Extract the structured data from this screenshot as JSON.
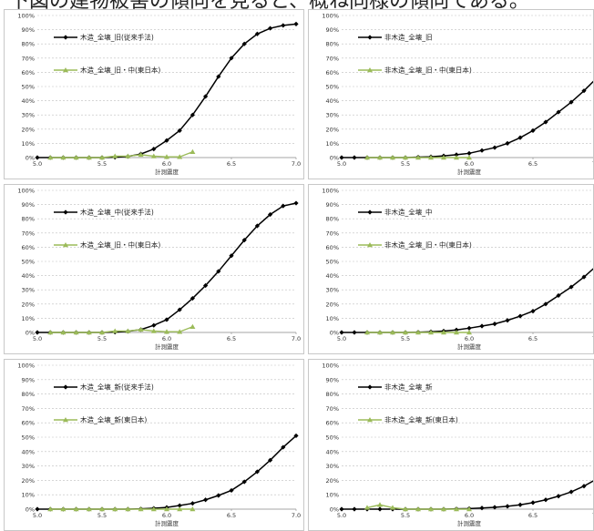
{
  "header_text": "下図の建物被害の傾向を見ると、概ね同様の傾向である。",
  "chart_data": [
    {
      "type": "line",
      "x": [
        5.0,
        5.1,
        5.2,
        5.3,
        5.4,
        5.5,
        5.6,
        5.7,
        5.8,
        5.9,
        6.0,
        6.1,
        6.2,
        6.3,
        6.4,
        6.5,
        6.6,
        6.7,
        6.8,
        6.9,
        7.0
      ],
      "xlim": [
        5.0,
        7.0
      ],
      "ylim": [
        0,
        100
      ],
      "xticks": [
        "5.0",
        "5.5",
        "6.0",
        "6.5",
        "7.0"
      ],
      "yticks": [
        "0%",
        "10%",
        "20%",
        "30%",
        "40%",
        "50%",
        "60%",
        "70%",
        "80%",
        "90%",
        "100%"
      ],
      "xlabel": "計測震度",
      "ylabel": "",
      "grid": "horizontal-dashed",
      "legend": "top-left",
      "series": [
        {
          "name": "木造_全壊_旧(従来手法)",
          "color": "#000000",
          "marker": "diamond",
          "x": [
            5.0,
            5.1,
            5.2,
            5.3,
            5.4,
            5.5,
            5.6,
            5.7,
            5.8,
            5.9,
            6.0,
            6.1,
            6.2,
            6.3,
            6.4,
            6.5,
            6.6,
            6.7,
            6.8,
            6.9,
            7.0
          ],
          "values": [
            0,
            0,
            0,
            0,
            0,
            0,
            0.2,
            0.8,
            2.5,
            6,
            12,
            19,
            30,
            43,
            57,
            70,
            80,
            87,
            91,
            93,
            94
          ]
        },
        {
          "name": "木造_全壊_旧・中(東日本)",
          "color": "#9bbb59",
          "marker": "triangle",
          "x": [
            5.1,
            5.2,
            5.3,
            5.4,
            5.5,
            5.6,
            5.7,
            5.8,
            5.9,
            6.0,
            6.1,
            6.2
          ],
          "values": [
            0,
            0,
            0,
            0,
            0,
            1,
            1,
            2,
            1,
            0.5,
            0.5,
            4
          ]
        }
      ]
    },
    {
      "type": "line",
      "x": [
        5.0,
        5.1,
        5.2,
        5.3,
        5.4,
        5.5,
        5.6,
        5.7,
        5.8,
        5.9,
        6.0,
        6.1,
        6.2,
        6.3,
        6.4,
        6.5,
        6.6,
        6.7,
        6.8,
        6.9,
        7.0
      ],
      "xlim": [
        5.0,
        7.0
      ],
      "ylim": [
        0,
        100
      ],
      "xticks": [
        "5.0",
        "5.5",
        "6.0",
        "6.5",
        "7.0"
      ],
      "yticks": [
        "0%",
        "10%",
        "20%",
        "30%",
        "40%",
        "50%",
        "60%",
        "70%",
        "80%",
        "90%",
        "100%"
      ],
      "xlabel": "計測震度",
      "ylabel": "",
      "grid": "horizontal-dashed",
      "legend": "top-left",
      "series": [
        {
          "name": "非木造_全壊_旧",
          "color": "#000000",
          "marker": "diamond",
          "x": [
            5.0,
            5.1,
            5.2,
            5.3,
            5.4,
            5.5,
            5.6,
            5.7,
            5.8,
            5.9,
            6.0,
            6.1,
            6.2,
            6.3,
            6.4,
            6.5,
            6.6,
            6.7,
            6.8,
            6.9,
            7.0
          ],
          "values": [
            0,
            0,
            0,
            0,
            0,
            0,
            0.3,
            0.6,
            1.2,
            2,
            3,
            5,
            7,
            10,
            14,
            19,
            25,
            32,
            39,
            47,
            56
          ]
        },
        {
          "name": "非木造_全壊_旧・中(東日本)",
          "color": "#9bbb59",
          "marker": "triangle",
          "x": [
            5.2,
            5.3,
            5.4,
            5.5,
            5.6,
            5.7,
            5.8,
            5.9,
            6.0
          ],
          "values": [
            0,
            0,
            0,
            0,
            0,
            0,
            0,
            0,
            0
          ]
        }
      ]
    },
    {
      "type": "line",
      "x": [
        5.0,
        5.1,
        5.2,
        5.3,
        5.4,
        5.5,
        5.6,
        5.7,
        5.8,
        5.9,
        6.0,
        6.1,
        6.2,
        6.3,
        6.4,
        6.5,
        6.6,
        6.7,
        6.8,
        6.9,
        7.0
      ],
      "xlim": [
        5.0,
        7.0
      ],
      "ylim": [
        0,
        100
      ],
      "xticks": [
        "5.0",
        "5.5",
        "6.0",
        "6.5",
        "7.0"
      ],
      "yticks": [
        "0%",
        "10%",
        "20%",
        "30%",
        "40%",
        "50%",
        "60%",
        "70%",
        "80%",
        "90%",
        "100%"
      ],
      "xlabel": "計測震度",
      "ylabel": "",
      "grid": "horizontal-dashed",
      "legend": "top-left",
      "series": [
        {
          "name": "木造_全壊_中(従来手法)",
          "color": "#000000",
          "marker": "diamond",
          "x": [
            5.0,
            5.1,
            5.2,
            5.3,
            5.4,
            5.5,
            5.6,
            5.7,
            5.8,
            5.9,
            6.0,
            6.1,
            6.2,
            6.3,
            6.4,
            6.5,
            6.6,
            6.7,
            6.8,
            6.9,
            7.0
          ],
          "values": [
            0,
            0,
            0,
            0,
            0,
            0,
            0.2,
            0.8,
            2,
            5,
            9,
            16,
            24,
            33,
            43,
            54,
            65,
            75,
            83,
            89,
            91
          ]
        },
        {
          "name": "木造_全壊_旧・中(東日本)",
          "color": "#9bbb59",
          "marker": "triangle",
          "x": [
            5.1,
            5.2,
            5.3,
            5.4,
            5.5,
            5.6,
            5.7,
            5.8,
            5.9,
            6.0,
            6.1,
            6.2
          ],
          "values": [
            0,
            0,
            0,
            0,
            0,
            1,
            1,
            2,
            1,
            0.5,
            0.5,
            4
          ]
        }
      ]
    },
    {
      "type": "line",
      "x": [
        5.0,
        5.1,
        5.2,
        5.3,
        5.4,
        5.5,
        5.6,
        5.7,
        5.8,
        5.9,
        6.0,
        6.1,
        6.2,
        6.3,
        6.4,
        6.5,
        6.6,
        6.7,
        6.8,
        6.9,
        7.0
      ],
      "xlim": [
        5.0,
        7.0
      ],
      "ylim": [
        0,
        100
      ],
      "xticks": [
        "5.0",
        "5.5",
        "6.0",
        "6.5",
        "7.0"
      ],
      "yticks": [
        "0%",
        "10%",
        "20%",
        "30%",
        "40%",
        "50%",
        "60%",
        "70%",
        "80%",
        "90%",
        "100%"
      ],
      "xlabel": "計測震度",
      "ylabel": "",
      "grid": "horizontal-dashed",
      "legend": "top-left",
      "series": [
        {
          "name": "非木造_全壊_中",
          "color": "#000000",
          "marker": "diamond",
          "x": [
            5.0,
            5.1,
            5.2,
            5.3,
            5.4,
            5.5,
            5.6,
            5.7,
            5.8,
            5.9,
            6.0,
            6.1,
            6.2,
            6.3,
            6.4,
            6.5,
            6.6,
            6.7,
            6.8,
            6.9,
            7.0
          ],
          "values": [
            0,
            0,
            0,
            0,
            0,
            0,
            0.2,
            0.5,
            1,
            1.8,
            3,
            4.5,
            6,
            8.5,
            11.5,
            15,
            20,
            26,
            32,
            39,
            47
          ]
        },
        {
          "name": "非木造_全壊_旧・中(東日本)",
          "color": "#9bbb59",
          "marker": "triangle",
          "x": [
            5.2,
            5.3,
            5.4,
            5.5,
            5.6,
            5.7,
            5.8,
            5.9,
            6.0
          ],
          "values": [
            0,
            0,
            0,
            0,
            0,
            0,
            0,
            0,
            0
          ]
        }
      ]
    },
    {
      "type": "line",
      "x": [
        5.0,
        5.1,
        5.2,
        5.3,
        5.4,
        5.5,
        5.6,
        5.7,
        5.8,
        5.9,
        6.0,
        6.1,
        6.2,
        6.3,
        6.4,
        6.5,
        6.6,
        6.7,
        6.8,
        6.9,
        7.0
      ],
      "xlim": [
        5.0,
        7.0
      ],
      "ylim": [
        0,
        100
      ],
      "xticks": [
        "5.0",
        "5.5",
        "6.0",
        "6.5",
        "7.0"
      ],
      "yticks": [
        "0%",
        "10%",
        "20%",
        "30%",
        "40%",
        "50%",
        "60%",
        "70%",
        "80%",
        "90%",
        "100%"
      ],
      "xlabel": "計測震度",
      "ylabel": "",
      "grid": "horizontal-dashed",
      "legend": "top-left",
      "series": [
        {
          "name": "木造_全壊_新(従来手法)",
          "color": "#000000",
          "marker": "diamond",
          "x": [
            5.0,
            5.1,
            5.2,
            5.3,
            5.4,
            5.5,
            5.6,
            5.7,
            5.8,
            5.9,
            6.0,
            6.1,
            6.2,
            6.3,
            6.4,
            6.5,
            6.6,
            6.7,
            6.8,
            6.9,
            7.0
          ],
          "values": [
            0,
            0,
            0,
            0,
            0,
            0,
            0,
            0,
            0.2,
            0.6,
            1.2,
            2.5,
            4,
            6.5,
            9.5,
            13,
            19,
            26,
            34,
            43,
            51
          ]
        },
        {
          "name": "木造_全壊_新(東日本)",
          "color": "#9bbb59",
          "marker": "triangle",
          "x": [
            5.1,
            5.2,
            5.3,
            5.4,
            5.5,
            5.6,
            5.7,
            5.8,
            5.9,
            6.0,
            6.1,
            6.2
          ],
          "values": [
            0,
            0,
            0,
            0,
            0,
            0,
            0,
            0,
            0,
            0,
            0,
            0
          ]
        }
      ]
    },
    {
      "type": "line",
      "x": [
        5.0,
        5.1,
        5.2,
        5.3,
        5.4,
        5.5,
        5.6,
        5.7,
        5.8,
        5.9,
        6.0,
        6.1,
        6.2,
        6.3,
        6.4,
        6.5,
        6.6,
        6.7,
        6.8,
        6.9,
        7.0
      ],
      "xlim": [
        5.0,
        7.0
      ],
      "ylim": [
        0,
        100
      ],
      "xticks": [
        "5.0",
        "5.5",
        "6.0",
        "6.5",
        "7.0"
      ],
      "yticks": [
        "0%",
        "10%",
        "20%",
        "30%",
        "40%",
        "50%",
        "60%",
        "70%",
        "80%",
        "90%",
        "100%"
      ],
      "xlabel": "計測震度",
      "ylabel": "",
      "grid": "horizontal-dashed",
      "legend": "top-left",
      "series": [
        {
          "name": "非木造_全壊_新",
          "color": "#000000",
          "marker": "diamond",
          "x": [
            5.0,
            5.1,
            5.2,
            5.3,
            5.4,
            5.5,
            5.6,
            5.7,
            5.8,
            5.9,
            6.0,
            6.1,
            6.2,
            6.3,
            6.4,
            6.5,
            6.6,
            6.7,
            6.8,
            6.9,
            7.0
          ],
          "values": [
            0,
            0,
            0,
            0,
            0,
            0,
            0,
            0,
            0,
            0.2,
            0.4,
            0.8,
            1.3,
            2,
            3,
            4.5,
            6.5,
            9,
            12,
            16,
            21
          ]
        },
        {
          "name": "非木造_全壊_新(東日本)",
          "color": "#9bbb59",
          "marker": "triangle",
          "x": [
            5.2,
            5.3,
            5.4,
            5.5,
            5.6,
            5.7,
            5.8,
            5.9,
            6.0
          ],
          "values": [
            1,
            3,
            1,
            0,
            0,
            0,
            0,
            0,
            0
          ]
        }
      ]
    }
  ]
}
